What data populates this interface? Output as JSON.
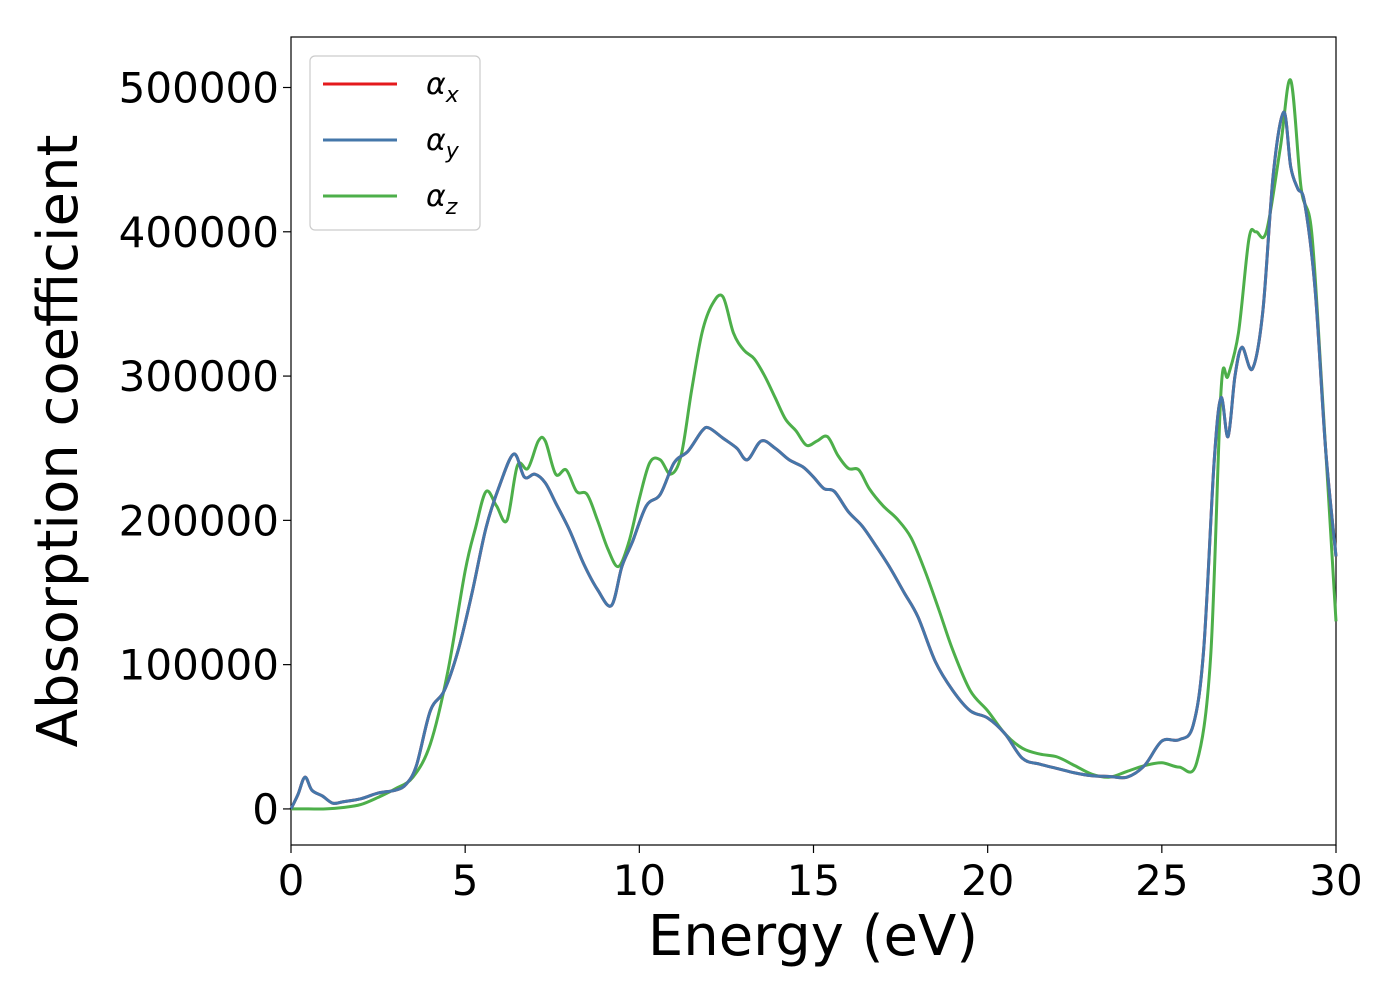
{
  "chart_data": {
    "type": "line",
    "xlabel": "Energy (eV)",
    "ylabel": "Absorption coefficient",
    "xlim": [
      0,
      30
    ],
    "ylim": [
      -25000,
      535000
    ],
    "xticks": [
      0,
      5,
      10,
      15,
      20,
      25,
      30
    ],
    "xtick_labels": [
      "0",
      "5",
      "10",
      "15",
      "20",
      "25",
      "30"
    ],
    "yticks": [
      0,
      100000,
      200000,
      300000,
      400000,
      500000
    ],
    "ytick_labels": [
      "0",
      "100000",
      "200000",
      "300000",
      "400000",
      "500000"
    ],
    "grid": false,
    "legend_position": "top-left",
    "series": [
      {
        "name": "αx",
        "symbol": "α",
        "subscript": "x",
        "color": "#e41a1c",
        "x": [
          0,
          0.2,
          0.4,
          0.6,
          0.9,
          1.2,
          1.5,
          2.0,
          2.5,
          3.0,
          3.3,
          3.6,
          4.0,
          4.4,
          4.8,
          5.2,
          5.6,
          6.0,
          6.4,
          6.7,
          7.0,
          7.3,
          7.6,
          8.0,
          8.4,
          8.8,
          9.2,
          9.5,
          9.8,
          10.2,
          10.6,
          11.0,
          11.4,
          11.8,
          12.0,
          12.4,
          12.8,
          13.1,
          13.5,
          13.9,
          14.3,
          14.7,
          15.0,
          15.3,
          15.6,
          16.0,
          16.4,
          16.8,
          17.2,
          17.6,
          18.0,
          18.5,
          19.0,
          19.5,
          20.0,
          20.5,
          21.0,
          21.5,
          22.0,
          22.5,
          23.0,
          23.5,
          24.0,
          24.5,
          25.0,
          25.5,
          25.9,
          26.2,
          26.5,
          26.7,
          26.9,
          27.1,
          27.3,
          27.6,
          27.9,
          28.2,
          28.5,
          28.7,
          28.9,
          29.1,
          29.4,
          29.7,
          30.0
        ],
        "y": [
          0,
          10000,
          22000,
          13000,
          9000,
          4000,
          5000,
          7000,
          11000,
          13000,
          17000,
          30000,
          68000,
          82000,
          110000,
          150000,
          195000,
          225000,
          246000,
          230000,
          232000,
          226000,
          212000,
          193000,
          170000,
          152000,
          141000,
          168000,
          185000,
          210000,
          218000,
          240000,
          248000,
          262000,
          264000,
          257000,
          250000,
          242000,
          255000,
          250000,
          242000,
          237000,
          230000,
          222000,
          220000,
          206000,
          196000,
          182000,
          167000,
          150000,
          133000,
          102000,
          82000,
          68000,
          63000,
          52000,
          35000,
          31000,
          28000,
          25000,
          23000,
          22500,
          22000,
          30000,
          47000,
          48000,
          58000,
          110000,
          240000,
          285000,
          258000,
          300000,
          320000,
          305000,
          345000,
          440000,
          483000,
          445000,
          430000,
          420000,
          360000,
          250000,
          175000
        ]
      },
      {
        "name": "αy",
        "symbol": "α",
        "subscript": "y",
        "color": "#4477aa",
        "x": [
          0,
          0.2,
          0.4,
          0.6,
          0.9,
          1.2,
          1.5,
          2.0,
          2.5,
          3.0,
          3.3,
          3.6,
          4.0,
          4.4,
          4.8,
          5.2,
          5.6,
          6.0,
          6.4,
          6.7,
          7.0,
          7.3,
          7.6,
          8.0,
          8.4,
          8.8,
          9.2,
          9.5,
          9.8,
          10.2,
          10.6,
          11.0,
          11.4,
          11.8,
          12.0,
          12.4,
          12.8,
          13.1,
          13.5,
          13.9,
          14.3,
          14.7,
          15.0,
          15.3,
          15.6,
          16.0,
          16.4,
          16.8,
          17.2,
          17.6,
          18.0,
          18.5,
          19.0,
          19.5,
          20.0,
          20.5,
          21.0,
          21.5,
          22.0,
          22.5,
          23.0,
          23.5,
          24.0,
          24.5,
          25.0,
          25.5,
          25.9,
          26.2,
          26.5,
          26.7,
          26.9,
          27.1,
          27.3,
          27.6,
          27.9,
          28.2,
          28.5,
          28.7,
          28.9,
          29.1,
          29.4,
          29.7,
          30.0
        ],
        "y": [
          0,
          10000,
          22000,
          13000,
          9000,
          4000,
          5000,
          7000,
          11000,
          13000,
          17000,
          30000,
          68000,
          82000,
          110000,
          150000,
          195000,
          225000,
          246000,
          230000,
          232000,
          226000,
          212000,
          193000,
          170000,
          152000,
          141000,
          168000,
          185000,
          210000,
          218000,
          240000,
          248000,
          262000,
          264000,
          257000,
          250000,
          242000,
          255000,
          250000,
          242000,
          237000,
          230000,
          222000,
          220000,
          206000,
          196000,
          182000,
          167000,
          150000,
          133000,
          102000,
          82000,
          68000,
          63000,
          52000,
          35000,
          31000,
          28000,
          25000,
          23000,
          22500,
          22000,
          30000,
          47000,
          48000,
          58000,
          110000,
          240000,
          285000,
          258000,
          300000,
          320000,
          305000,
          345000,
          440000,
          483000,
          445000,
          430000,
          420000,
          360000,
          250000,
          175000
        ]
      },
      {
        "name": "αz",
        "symbol": "α",
        "subscript": "z",
        "color": "#4daf4a",
        "x": [
          0,
          0.5,
          1.0,
          1.5,
          2.0,
          2.5,
          3.0,
          3.5,
          4.0,
          4.5,
          5.0,
          5.3,
          5.6,
          5.9,
          6.2,
          6.5,
          6.8,
          7.1,
          7.3,
          7.6,
          7.9,
          8.2,
          8.5,
          8.8,
          9.1,
          9.4,
          9.7,
          10.0,
          10.3,
          10.6,
          10.9,
          11.2,
          11.5,
          11.8,
          12.1,
          12.4,
          12.7,
          13.0,
          13.3,
          13.6,
          13.9,
          14.2,
          14.5,
          14.8,
          15.1,
          15.4,
          15.7,
          16.0,
          16.3,
          16.6,
          17.0,
          17.4,
          17.8,
          18.2,
          18.6,
          19.0,
          19.5,
          20.0,
          20.5,
          21.0,
          21.5,
          22.0,
          22.5,
          23.0,
          23.5,
          24.0,
          24.5,
          25.0,
          25.5,
          26.0,
          26.4,
          26.7,
          26.9,
          27.2,
          27.5,
          27.7,
          28.0,
          28.4,
          28.7,
          29.0,
          29.3,
          29.6,
          30.0
        ],
        "y": [
          0,
          0,
          0,
          1000,
          3000,
          8000,
          14000,
          22000,
          45000,
          95000,
          165000,
          195000,
          220000,
          210000,
          200000,
          238000,
          236000,
          255000,
          255000,
          232000,
          235000,
          220000,
          218000,
          200000,
          180000,
          168000,
          185000,
          215000,
          240000,
          242000,
          232000,
          245000,
          290000,
          330000,
          350000,
          355000,
          330000,
          318000,
          312000,
          300000,
          285000,
          270000,
          262000,
          252000,
          255000,
          258000,
          245000,
          236000,
          235000,
          222000,
          210000,
          201000,
          188000,
          165000,
          138000,
          110000,
          82000,
          68000,
          52000,
          42000,
          38000,
          36000,
          30000,
          24000,
          22000,
          26000,
          30000,
          32000,
          29000,
          32000,
          105000,
          290000,
          300000,
          330000,
          395000,
          400000,
          400000,
          458000,
          505000,
          430000,
          400000,
          290000,
          130000
        ]
      }
    ]
  }
}
